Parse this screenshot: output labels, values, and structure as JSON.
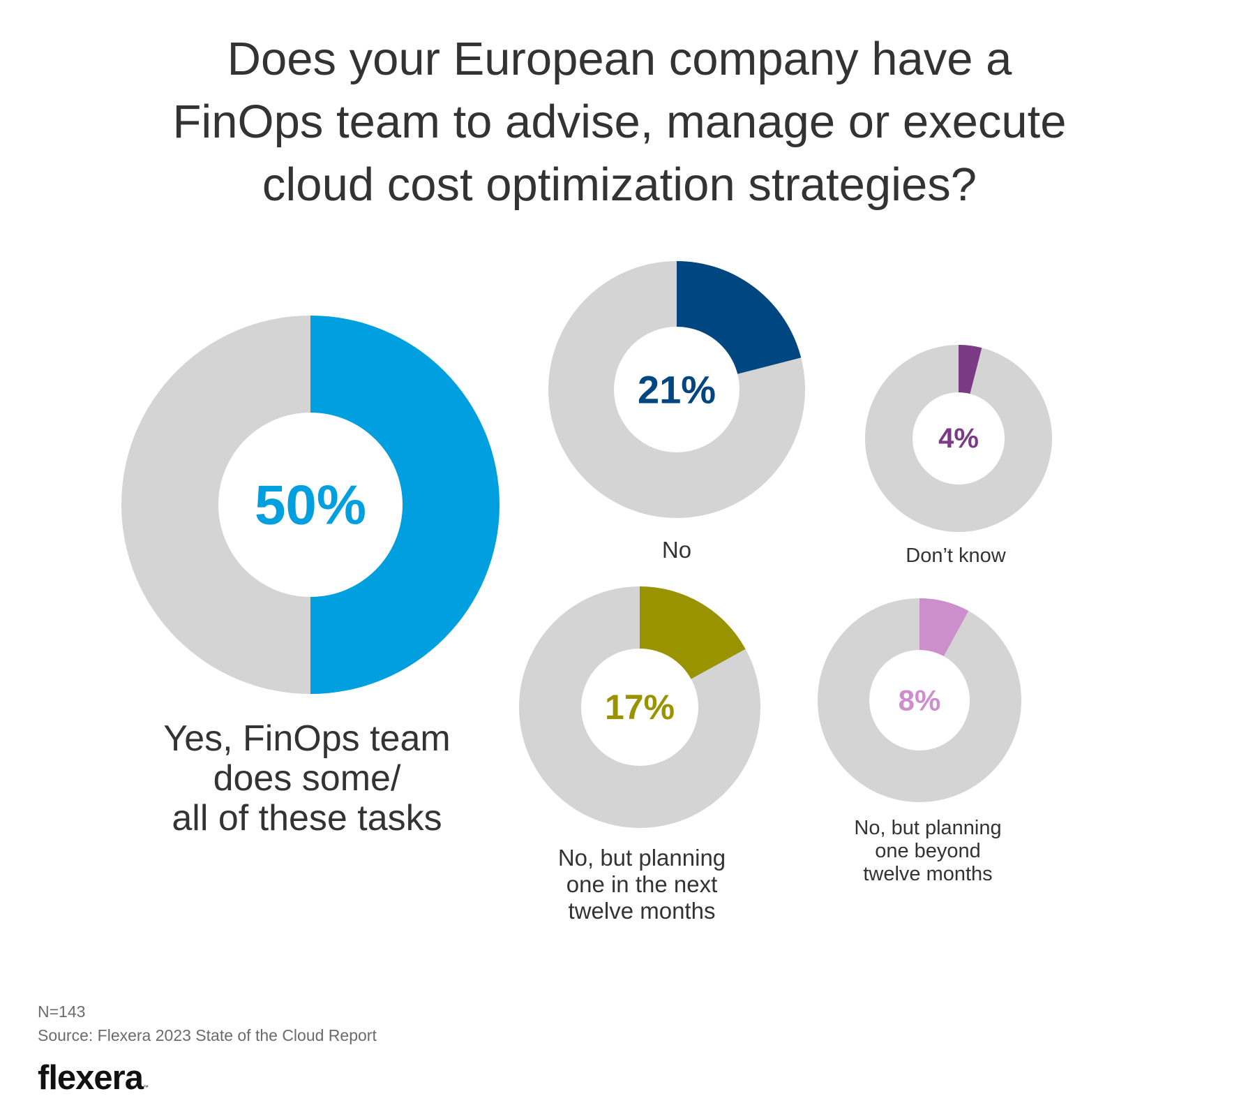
{
  "title_lines": [
    "Does your European company have a",
    "FinOps team to advise, manage or execute",
    "cloud cost optimization strategies?"
  ],
  "chart_data": {
    "type": "pie",
    "variant": "donut",
    "track_color": "#d4d4d4",
    "slices": [
      {
        "label_lines": [
          "Yes, FinOps team",
          "does some/",
          "all of these tasks"
        ],
        "value": 50,
        "value_label": "50%",
        "color": "#009fdf"
      },
      {
        "label_lines": [
          "No"
        ],
        "value": 21,
        "value_label": "21%",
        "color": "#004681"
      },
      {
        "label_lines": [
          "Don’t know"
        ],
        "value": 4,
        "value_label": "4%",
        "color": "#7b3a84"
      },
      {
        "label_lines": [
          "No, but planning",
          "one in the next",
          "twelve months"
        ],
        "value": 17,
        "value_label": "17%",
        "color": "#999300"
      },
      {
        "label_lines": [
          "No, but planning",
          "one beyond",
          "twelve months"
        ],
        "value": 8,
        "value_label": "8%",
        "color": "#cc8fcc"
      }
    ]
  },
  "footer": {
    "sample": "N=143",
    "source": "Source: Flexera 2023 State of the Cloud Report",
    "logo_text": "flexera",
    "logo_mark": "™"
  }
}
